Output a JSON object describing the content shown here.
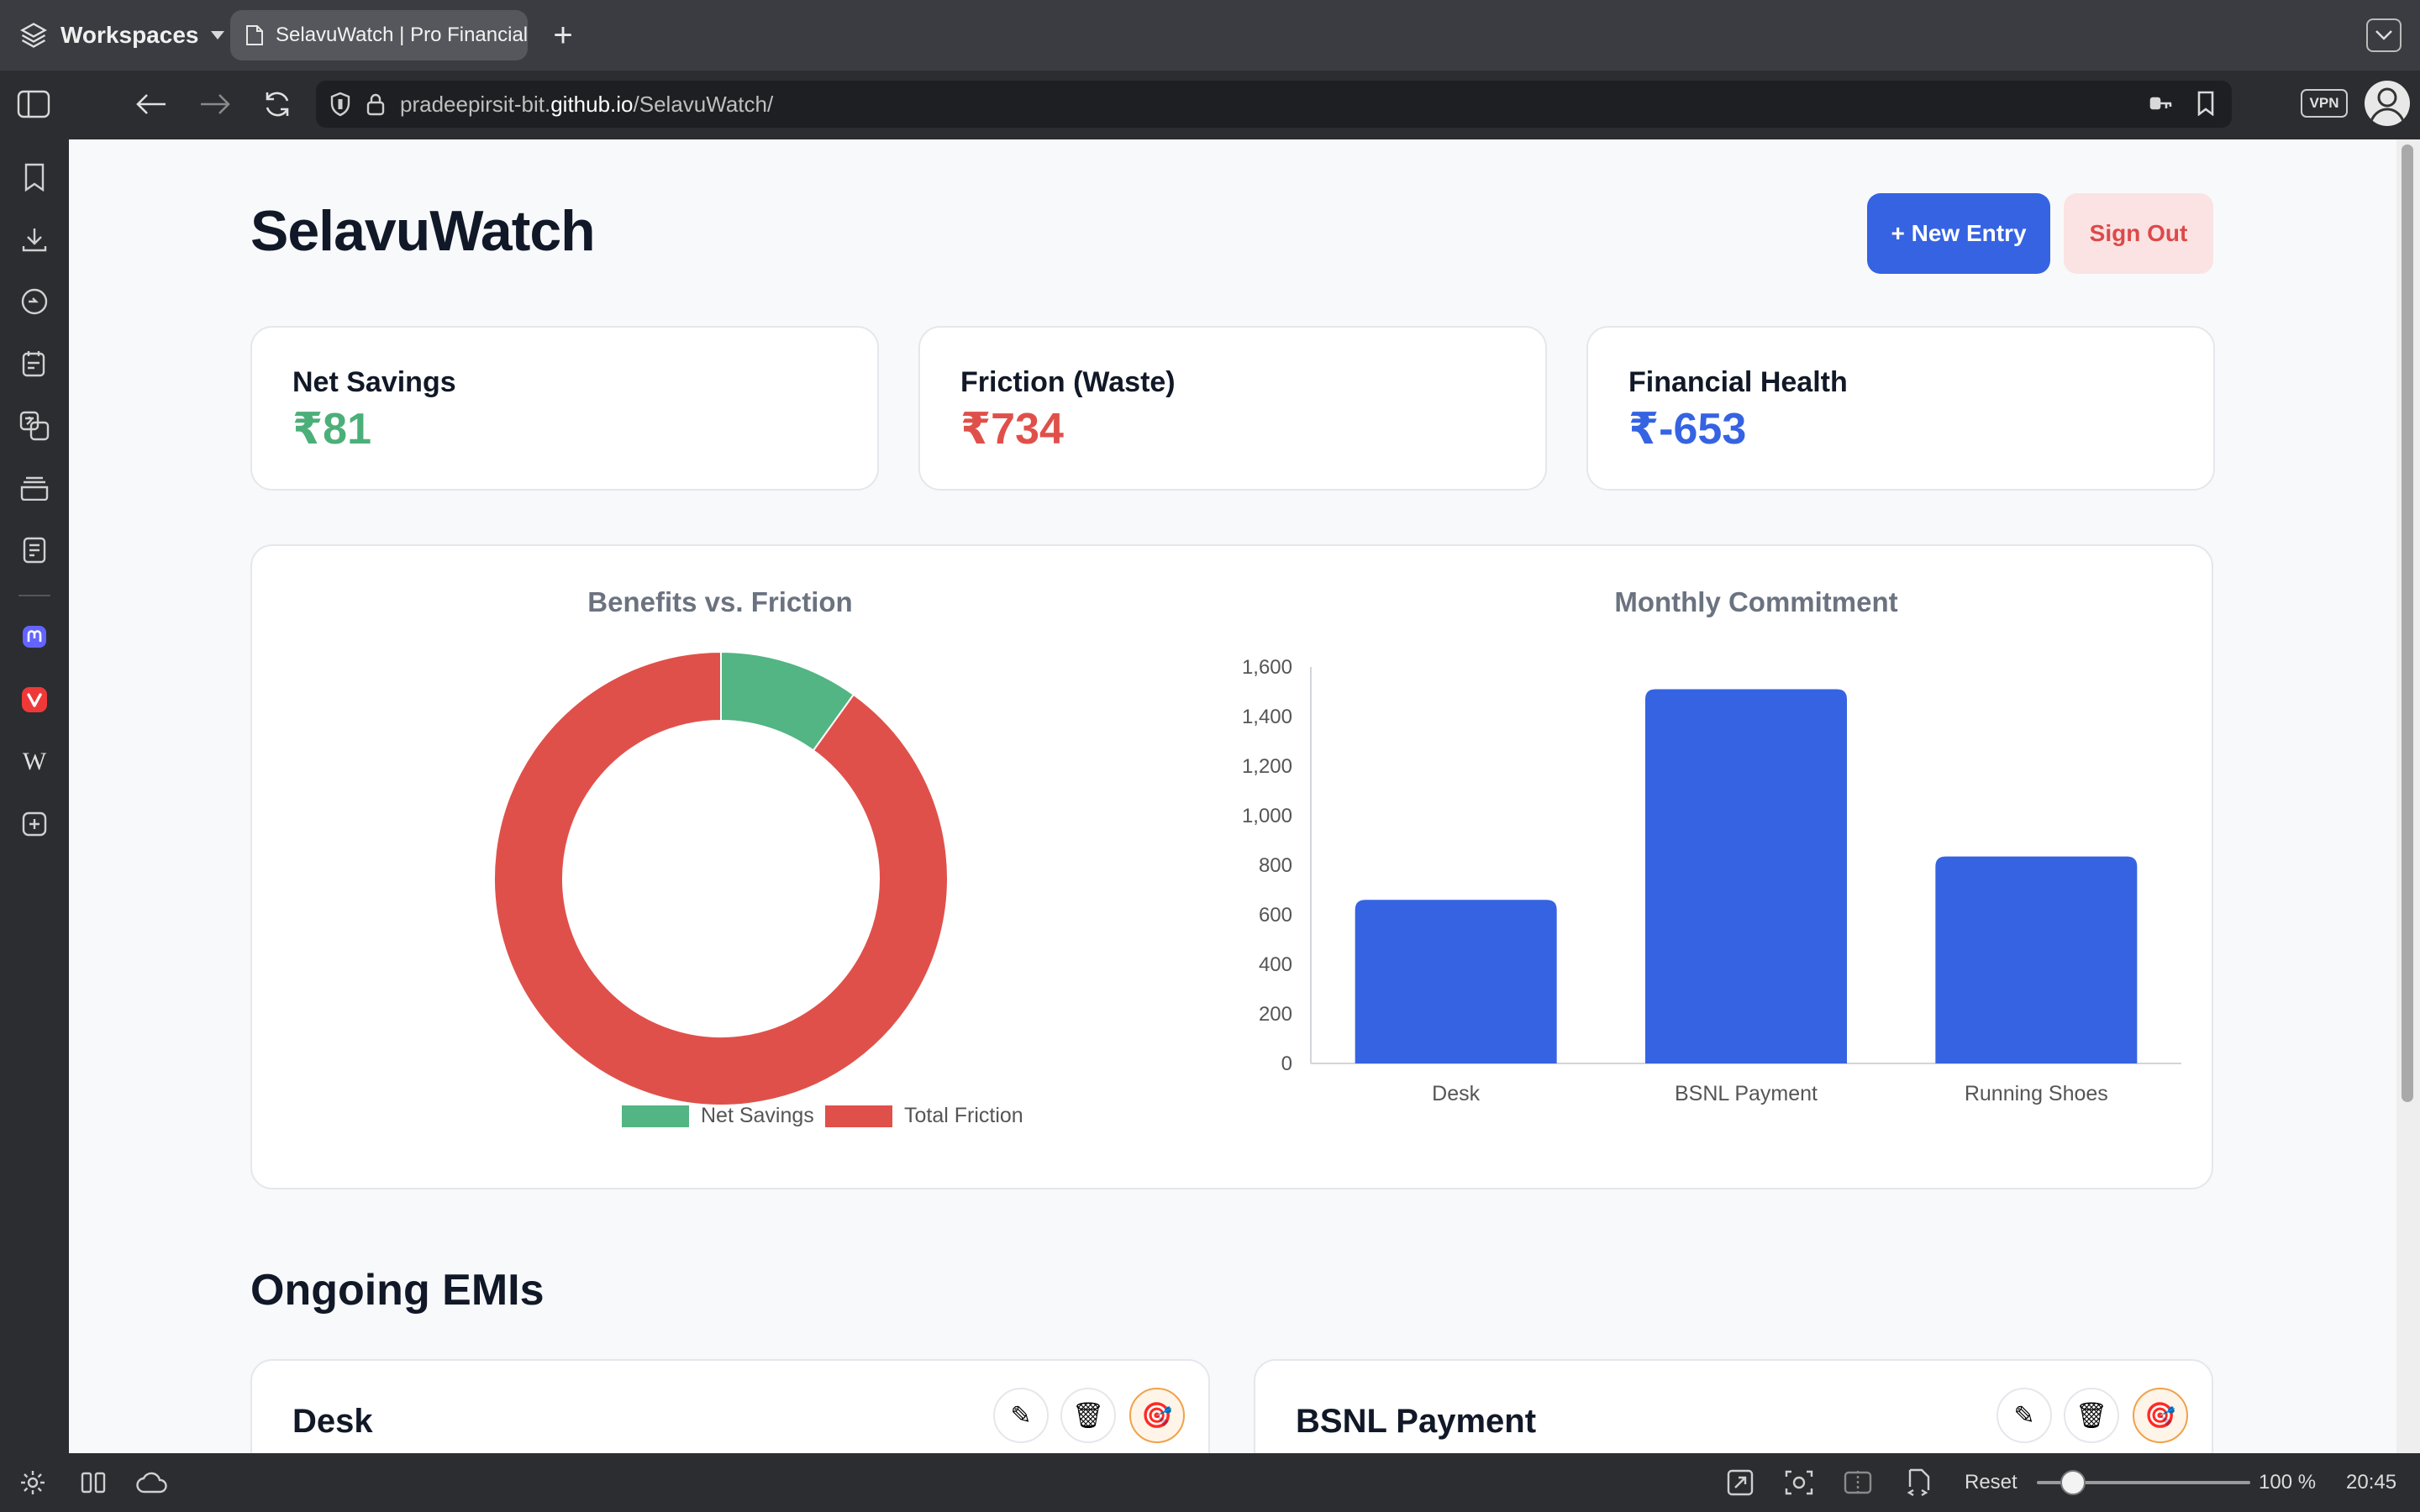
{
  "browser": {
    "workspaces_label": "Workspaces",
    "tab_title": "SelavuWatch | Pro Financial",
    "url_prefix": "pradeepirsit-bit.",
    "url_domain": "github.io",
    "url_path": "/SelavuWatch/",
    "vpn_label": "VPN",
    "reset_label": "Reset",
    "zoom_level": "100 %",
    "clock": "20:45"
  },
  "app": {
    "title": "SelavuWatch",
    "new_entry_label": "+ New Entry",
    "sign_out_label": "Sign Out"
  },
  "stats": [
    {
      "label": "Net Savings",
      "value": "₹81",
      "color": "#4caf79"
    },
    {
      "label": "Friction (Waste)",
      "value": "₹734",
      "color": "#e0504a"
    },
    {
      "label": "Financial Health",
      "value": "₹-653",
      "color": "#3563e2"
    }
  ],
  "chart_data": [
    {
      "type": "pie",
      "title": "Benefits vs. Friction",
      "labels": [
        "Net Savings",
        "Total Friction"
      ],
      "values": [
        81,
        734
      ],
      "colors": [
        "#52b583",
        "#e0504a"
      ],
      "legend": "bottom"
    },
    {
      "type": "bar",
      "title": "Monthly Commitment",
      "categories": [
        "Desk",
        "BSNL Payment",
        "Running Shoes"
      ],
      "values": [
        660,
        1510,
        835
      ],
      "ylim": [
        0,
        1600
      ],
      "yticks": [
        "0",
        "200",
        "400",
        "600",
        "800",
        "1,000",
        "1,200",
        "1,400",
        "1,600"
      ],
      "color": "#3563e2"
    }
  ],
  "emis": {
    "section_title": "Ongoing EMIs",
    "items": [
      {
        "name": "Desk"
      },
      {
        "name": "BSNL Payment"
      }
    ],
    "edit_glyph": "✎",
    "delete_glyph": "🗑",
    "goal_glyph": "🎯"
  }
}
